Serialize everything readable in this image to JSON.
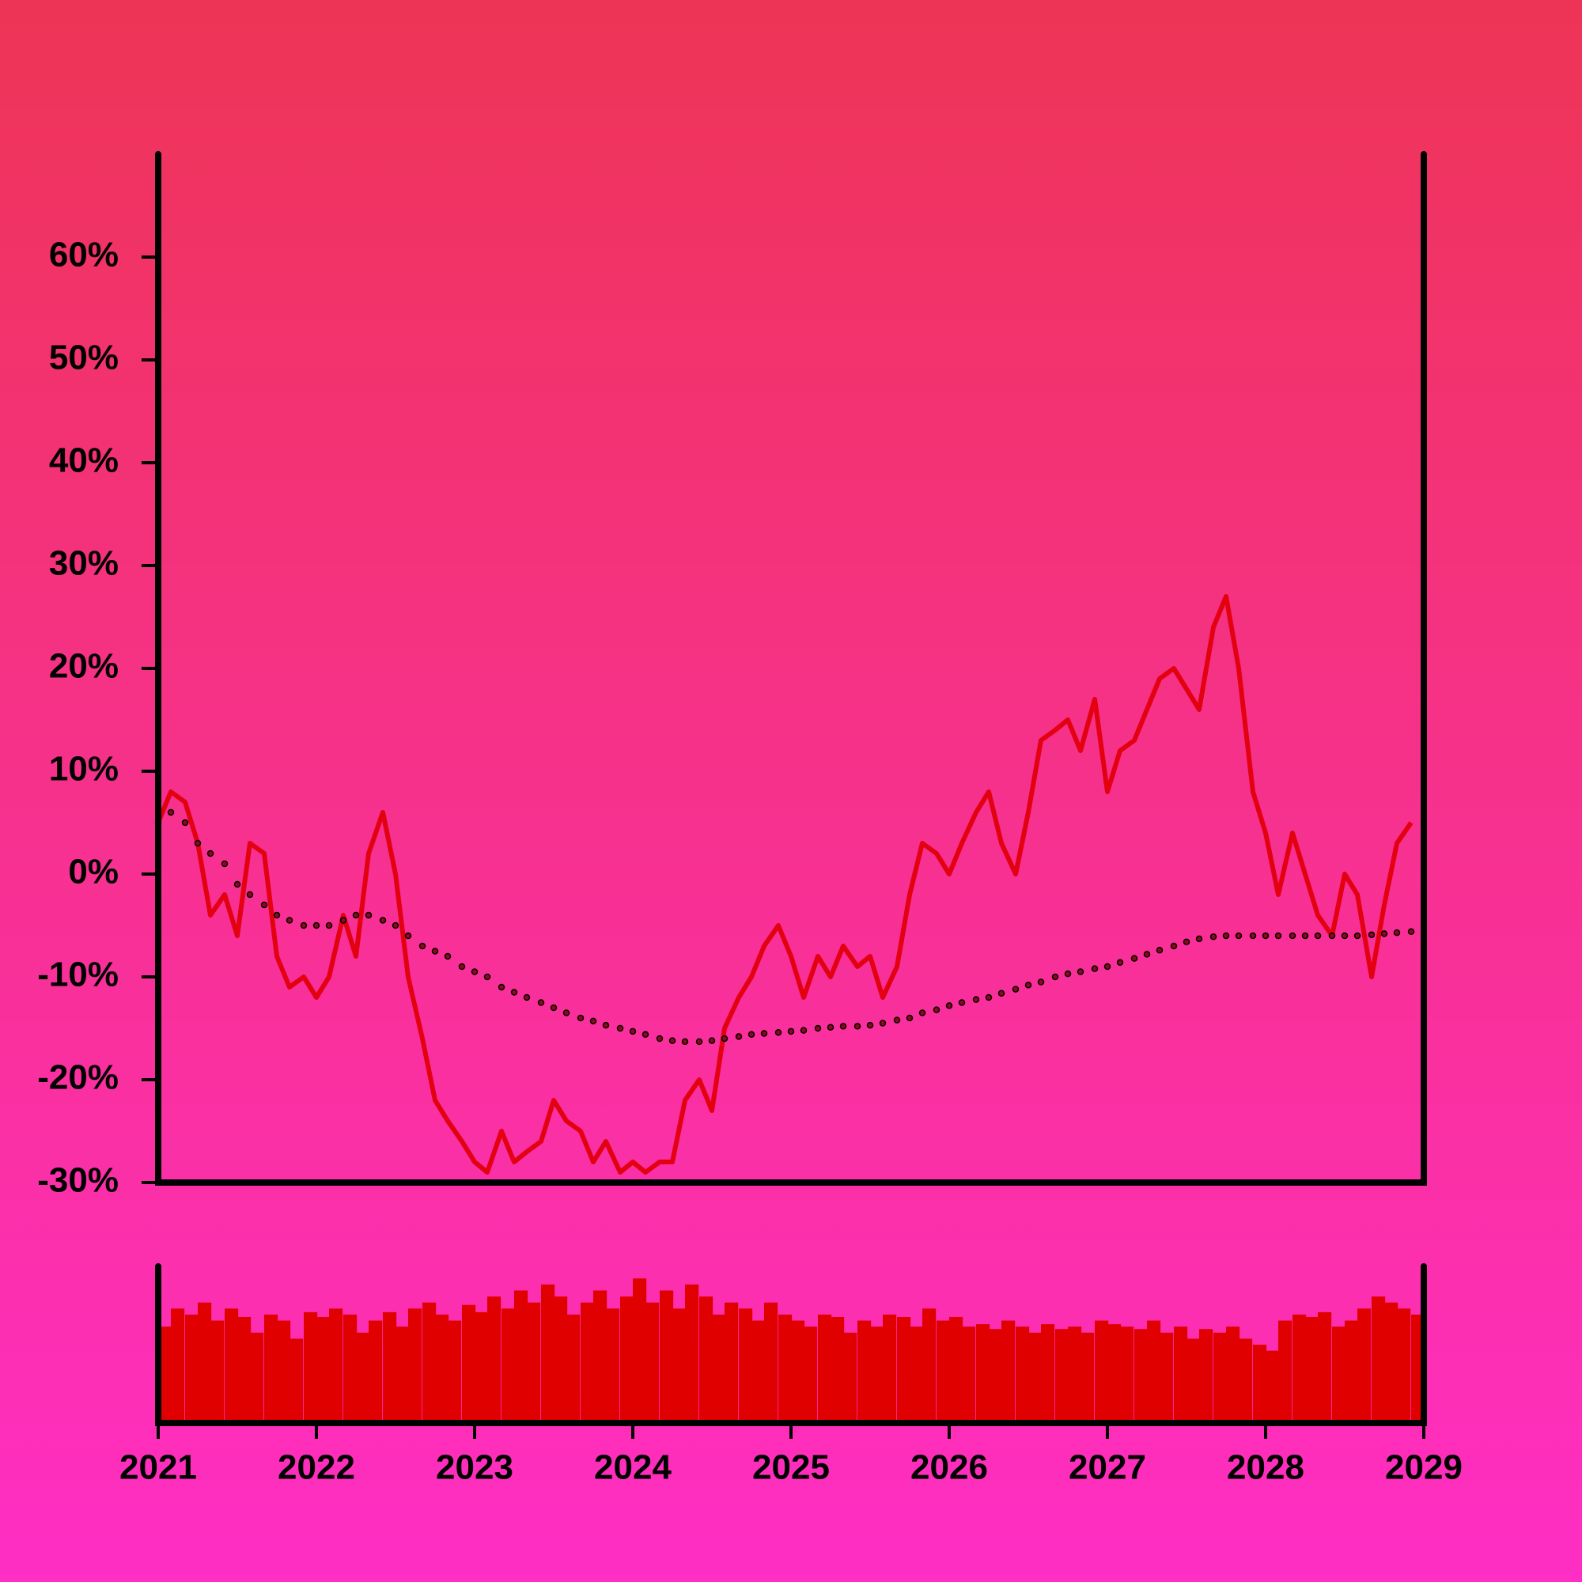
{
  "chart_data": [
    {
      "type": "line",
      "x": [
        2021.0,
        2021.08,
        2021.17,
        2021.25,
        2021.33,
        2021.42,
        2021.5,
        2021.58,
        2021.67,
        2021.75,
        2021.83,
        2021.92,
        2022.0,
        2022.08,
        2022.17,
        2022.25,
        2022.33,
        2022.42,
        2022.5,
        2022.58,
        2022.67,
        2022.75,
        2022.83,
        2022.92,
        2023.0,
        2023.08,
        2023.17,
        2023.25,
        2023.33,
        2023.42,
        2023.5,
        2023.58,
        2023.67,
        2023.75,
        2023.83,
        2023.92,
        2024.0,
        2024.08,
        2024.17,
        2024.25,
        2024.33,
        2024.42,
        2024.5,
        2024.58,
        2024.67,
        2024.75,
        2024.83,
        2024.92,
        2025.0,
        2025.08,
        2025.17,
        2025.25,
        2025.33,
        2025.42,
        2025.5,
        2025.58,
        2025.67,
        2025.75,
        2025.83,
        2025.92,
        2026.0,
        2026.08,
        2026.17,
        2026.25,
        2026.33,
        2026.42,
        2026.5,
        2026.58,
        2026.67,
        2026.75,
        2026.83,
        2026.92,
        2027.0,
        2027.08,
        2027.17,
        2027.25,
        2027.33,
        2027.42,
        2027.5,
        2027.58,
        2027.67,
        2027.75,
        2027.83,
        2027.92,
        2028.0,
        2028.08,
        2028.17,
        2028.25,
        2028.33,
        2028.42,
        2028.5,
        2028.58,
        2028.67,
        2028.75,
        2028.83,
        2028.92
      ],
      "series": [
        {
          "color": "#e30010",
          "style": "line",
          "values": [
            5,
            8,
            7,
            3,
            -4,
            -2,
            -6,
            3,
            2,
            -8,
            -11,
            -10,
            -12,
            -10,
            -4,
            -8,
            2,
            6,
            0,
            -10,
            -16,
            -22,
            -24,
            -26,
            -28,
            -29,
            -25,
            -28,
            -27,
            -26,
            -22,
            -24,
            -25,
            -28,
            -26,
            -29,
            -28,
            -29,
            -28,
            -28,
            -22,
            -20,
            -23,
            -15,
            -12,
            -10,
            -7,
            -5,
            -8,
            -12,
            -8,
            -10,
            -7,
            -9,
            -8,
            -12,
            -9,
            -2,
            3,
            2,
            0,
            3,
            6,
            8,
            3,
            0,
            6,
            13,
            14,
            15,
            12,
            17,
            8,
            12,
            13,
            16,
            19,
            20,
            18,
            16,
            24,
            27,
            20,
            8,
            4,
            -2,
            4,
            0,
            -4,
            -6,
            0,
            -2,
            -10,
            -3,
            3,
            5
          ]
        },
        {
          "color": "#8b0a1a",
          "style": "dots",
          "values": [
            5,
            6,
            5,
            3,
            2,
            1,
            -1,
            -2,
            -3,
            -4,
            -4.5,
            -5,
            -5,
            -5,
            -4.5,
            -4,
            -4,
            -4.5,
            -5,
            -6,
            -7,
            -7.5,
            -8,
            -9,
            -9.5,
            -10,
            -11,
            -11.5,
            -12,
            -12.5,
            -13,
            -13.5,
            -14,
            -14.3,
            -14.7,
            -15,
            -15.3,
            -15.6,
            -16,
            -16.2,
            -16.3,
            -16.3,
            -16.2,
            -16,
            -15.8,
            -15.6,
            -15.5,
            -15.4,
            -15.3,
            -15.2,
            -15,
            -14.9,
            -14.8,
            -14.8,
            -14.7,
            -14.5,
            -14.2,
            -14,
            -13.5,
            -13.2,
            -12.8,
            -12.5,
            -12.2,
            -12,
            -11.6,
            -11.2,
            -10.8,
            -10.5,
            -10,
            -9.7,
            -9.5,
            -9.2,
            -9,
            -8.6,
            -8.2,
            -7.8,
            -7.4,
            -7,
            -6.6,
            -6.3,
            -6.1,
            -6,
            -6,
            -6,
            -6,
            -6,
            -6,
            -6,
            -6,
            -6,
            -6,
            -6,
            -5.9,
            -5.8,
            -5.7,
            -5.6
          ]
        }
      ],
      "xlim": [
        2021,
        2029
      ],
      "ylim": [
        -30,
        70
      ],
      "yticks": [
        {
          "value": -30,
          "label": "-30%"
        },
        {
          "value": -20,
          "label": "-20%"
        },
        {
          "value": -10,
          "label": "-10%"
        },
        {
          "value": 0,
          "label": "0%"
        },
        {
          "value": 10,
          "label": "10%"
        },
        {
          "value": 20,
          "label": "20%"
        },
        {
          "value": 30,
          "label": "30%"
        },
        {
          "value": 40,
          "label": "40%"
        },
        {
          "value": 50,
          "label": "50%"
        },
        {
          "value": 60,
          "label": "60%"
        }
      ]
    },
    {
      "type": "bar",
      "color": "#e00000",
      "values": [
        80,
        95,
        90,
        100,
        85,
        95,
        88,
        75,
        90,
        85,
        70,
        92,
        88,
        95,
        90,
        75,
        85,
        92,
        80,
        95,
        100,
        90,
        85,
        98,
        92,
        105,
        95,
        110,
        100,
        115,
        105,
        90,
        100,
        110,
        95,
        105,
        120,
        100,
        110,
        95,
        115,
        105,
        90,
        100,
        95,
        85,
        100,
        90,
        85,
        80,
        90,
        88,
        75,
        85,
        80,
        90,
        88,
        80,
        95,
        85,
        88,
        80,
        82,
        78,
        85,
        80,
        75,
        82,
        78,
        80,
        75,
        85,
        82,
        80,
        78,
        85,
        75,
        80,
        70,
        78,
        75,
        80,
        70,
        65,
        60,
        85,
        90,
        88,
        92,
        80,
        85,
        95,
        105,
        100,
        95,
        90
      ],
      "xlim": [
        2021,
        2029
      ],
      "ylim": [
        0,
        130
      ],
      "xticks": [
        2021,
        2022,
        2023,
        2024,
        2025,
        2026,
        2027,
        2028,
        2029
      ]
    }
  ]
}
